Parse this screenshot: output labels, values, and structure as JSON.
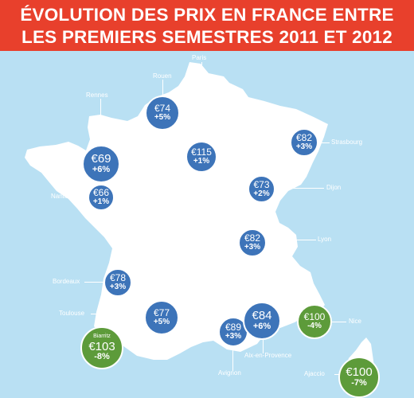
{
  "header": {
    "line1": "ÉVOLUTION DES PRIX EN FRANCE ENTRE",
    "line2": "LES PREMIERS SEMESTRES 2011 ET 2012"
  },
  "colors": {
    "header_bg": "#e8402c",
    "sea": "#b9e0f3",
    "land": "#ffffff",
    "increase_bubble": "#3d74b9",
    "decrease_bubble": "#5d9b3a"
  },
  "cities": [
    {
      "id": "rouen",
      "name": "Rouen",
      "price": "€74",
      "change": "+5%",
      "trend": "up"
    },
    {
      "id": "paris",
      "name": "Paris",
      "price": "€115",
      "change": "+1%",
      "trend": "up"
    },
    {
      "id": "rennes",
      "name": "Rennes",
      "price": "€69",
      "change": "+6%",
      "trend": "up"
    },
    {
      "id": "strasbourg",
      "name": "Strasbourg",
      "price": "€82",
      "change": "+3%",
      "trend": "up"
    },
    {
      "id": "nantes",
      "name": "Nantes",
      "price": "€66",
      "change": "+1%",
      "trend": "up"
    },
    {
      "id": "dijon",
      "name": "Dijon",
      "price": "€73",
      "change": "+2%",
      "trend": "up"
    },
    {
      "id": "lyon",
      "name": "Lyon",
      "price": "€82",
      "change": "+3%",
      "trend": "up"
    },
    {
      "id": "bordeaux",
      "name": "Bordeaux",
      "price": "€78",
      "change": "+3%",
      "trend": "up"
    },
    {
      "id": "toulouse",
      "name": "Toulouse",
      "price": "€77",
      "change": "+5%",
      "trend": "up"
    },
    {
      "id": "avignon",
      "name": "Avignon",
      "price": "€89",
      "change": "+3%",
      "trend": "up"
    },
    {
      "id": "aix",
      "name": "Aix-en-Provence",
      "price": "€84",
      "change": "+6%",
      "trend": "up"
    },
    {
      "id": "nice",
      "name": "Nice",
      "price": "€100",
      "change": "-4%",
      "trend": "down"
    },
    {
      "id": "biarritz",
      "name": "Biarritz",
      "price": "€103",
      "change": "-8%",
      "trend": "down"
    },
    {
      "id": "ajaccio",
      "name": "Ajaccio",
      "price": "€100",
      "change": "-7%",
      "trend": "down"
    }
  ]
}
